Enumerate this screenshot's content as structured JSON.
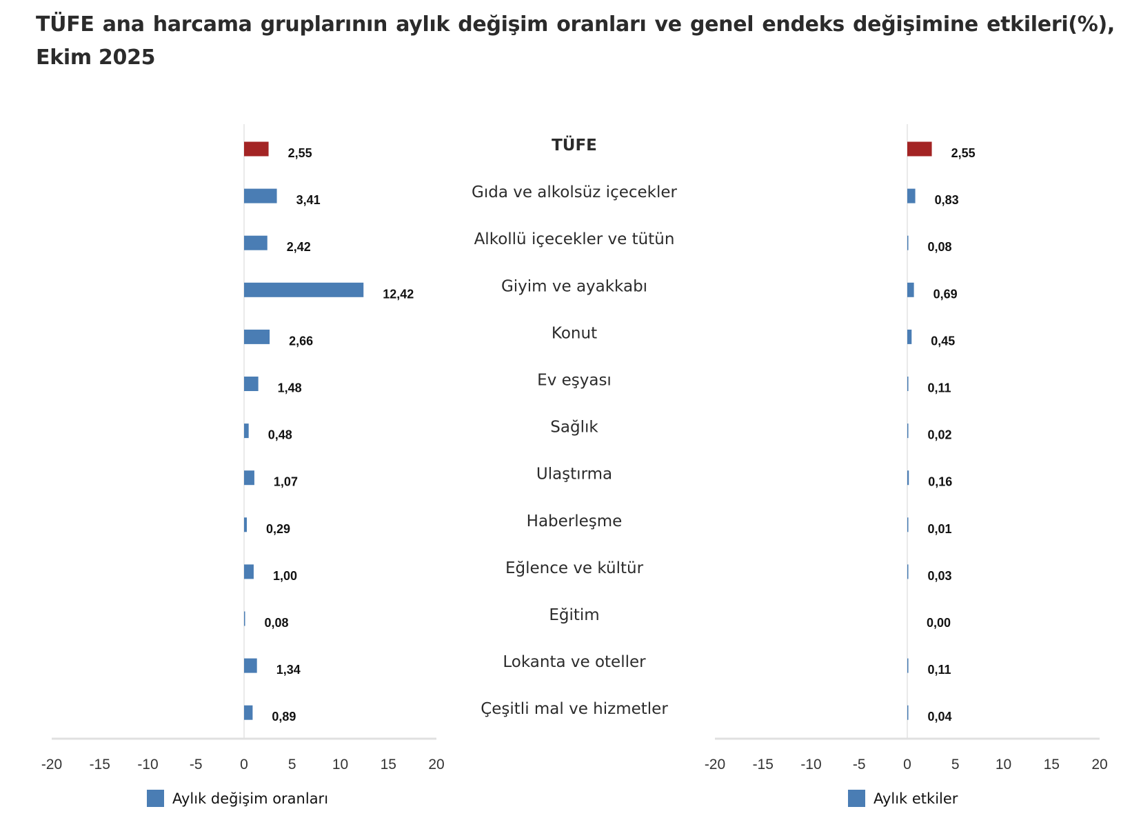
{
  "title": "TÜFE ana harcama gruplarının aylık değişim oranları ve genel endeks değişimine etkileri(%), Ekim 2025",
  "chart_data": {
    "type": "bar",
    "orientation": "horizontal",
    "title": "TÜFE ana harcama gruplarının aylık değişim oranları ve genel endeks değişimine etkileri(%), Ekim 2025",
    "categories": [
      "TÜFE",
      "Gıda ve alkolsüz içecekler",
      "Alkollü içecekler ve tütün",
      "Giyim ve ayakkabı",
      "Konut",
      "Ev eşyası",
      "Sağlık",
      "Ulaştırma",
      "Haberleşme",
      "Eğlence ve kültür",
      "Eğitim",
      "Lokanta ve oteller",
      "Çeşitli mal ve hizmetler"
    ],
    "highlight_category": "TÜFE",
    "colors": {
      "series": "#4a7db4",
      "highlight": "#a32424",
      "axis": "#e0e0e0"
    },
    "xlim": [
      -20,
      20
    ],
    "xticks": [
      "-20",
      "-15",
      "-10",
      "-5",
      "0",
      "5",
      "10",
      "15",
      "20"
    ],
    "grid": false,
    "legend_placement": "bottom",
    "series": [
      {
        "name": "Aylık değişim oranları",
        "values": [
          2.55,
          3.41,
          2.42,
          12.42,
          2.66,
          1.48,
          0.48,
          1.07,
          0.29,
          1.0,
          0.08,
          1.34,
          0.89
        ],
        "labels": [
          "2,55",
          "3,41",
          "2,42",
          "12,42",
          "2,66",
          "1,48",
          "0,48",
          "1,07",
          "0,29",
          "1,00",
          "0,08",
          "1,34",
          "0,89"
        ]
      },
      {
        "name": "Aylık etkiler",
        "values": [
          2.55,
          0.83,
          0.08,
          0.69,
          0.45,
          0.11,
          0.02,
          0.16,
          0.01,
          0.03,
          0.0,
          0.11,
          0.04
        ],
        "labels": [
          "2,55",
          "0,83",
          "0,08",
          "0,69",
          "0,45",
          "0,11",
          "0,02",
          "0,16",
          "0,01",
          "0,03",
          "0,00",
          "0,11",
          "0,04"
        ]
      }
    ]
  }
}
